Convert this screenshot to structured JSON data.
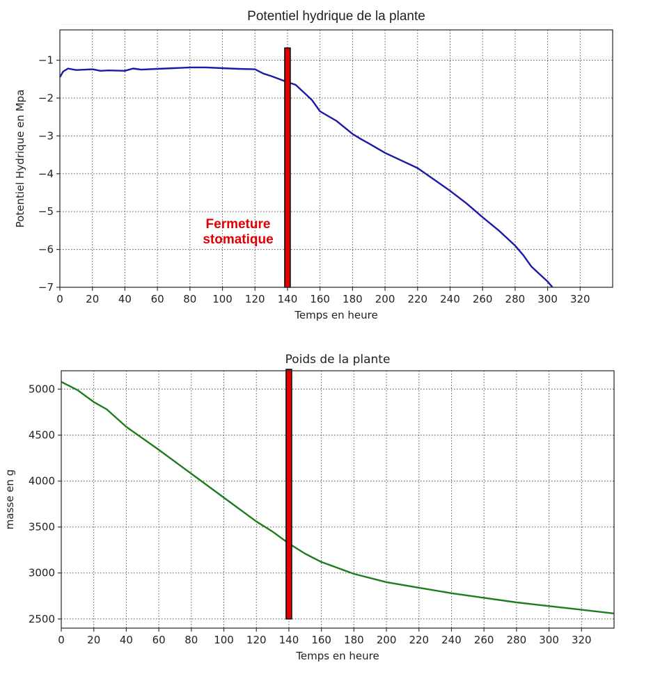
{
  "chart_data": [
    {
      "type": "line",
      "title": "Potentiel hydrique de la plante",
      "xlabel": "Temps en heure",
      "ylabel": "Potentiel Hydrique en Mpa",
      "xlim": [
        0,
        340
      ],
      "ylim": [
        -7,
        -0.2
      ],
      "xticks": [
        0,
        20,
        40,
        60,
        80,
        100,
        120,
        140,
        160,
        180,
        200,
        220,
        240,
        260,
        280,
        300,
        320
      ],
      "yticks": [
        -1,
        -2,
        -3,
        -4,
        -5,
        -6,
        -7
      ],
      "ytick_labels": [
        "−1",
        "−2",
        "−3",
        "−4",
        "−5",
        "−6",
        "−7"
      ],
      "grid": true,
      "series": [
        {
          "name": "Potentiel hydrique",
          "color": "#1a1aa6",
          "x": [
            0,
            2,
            5,
            10,
            20,
            25,
            30,
            40,
            45,
            50,
            60,
            70,
            80,
            90,
            100,
            110,
            120,
            125,
            130,
            135,
            140,
            145,
            150,
            155,
            160,
            170,
            180,
            185,
            190,
            200,
            210,
            220,
            230,
            240,
            250,
            260,
            270,
            280,
            285,
            290,
            295,
            300,
            303
          ],
          "values": [
            -1.45,
            -1.3,
            -1.22,
            -1.26,
            -1.24,
            -1.28,
            -1.27,
            -1.28,
            -1.22,
            -1.25,
            -1.23,
            -1.21,
            -1.19,
            -1.19,
            -1.21,
            -1.23,
            -1.24,
            -1.35,
            -1.42,
            -1.5,
            -1.58,
            -1.65,
            -1.85,
            -2.05,
            -2.35,
            -2.6,
            -2.95,
            -3.08,
            -3.2,
            -3.45,
            -3.65,
            -3.85,
            -4.15,
            -4.45,
            -4.78,
            -5.15,
            -5.5,
            -5.9,
            -6.15,
            -6.45,
            -6.65,
            -6.85,
            -7.0
          ]
        }
      ],
      "annotations": [
        {
          "type": "vertical-bar",
          "x": 140,
          "y_from": -7,
          "y_to": -0.5,
          "color": "#e00000"
        },
        {
          "type": "text",
          "text": "Fermeture stomatique",
          "lines": [
            "Fermeture",
            "stomatique"
          ],
          "x": 100,
          "y": -5.4,
          "color": "#e00000"
        }
      ]
    },
    {
      "type": "line",
      "title": "Poids de la plante",
      "xlabel": "Temps en heure",
      "ylabel": "masse en g",
      "xlim": [
        0,
        340
      ],
      "ylim": [
        2400,
        5200
      ],
      "xticks": [
        0,
        20,
        40,
        60,
        80,
        100,
        120,
        140,
        160,
        180,
        200,
        220,
        240,
        260,
        280,
        300,
        320
      ],
      "yticks": [
        2500,
        3000,
        3500,
        4000,
        4500,
        5000
      ],
      "grid": true,
      "series": [
        {
          "name": "Poids",
          "color": "#1e7b1e",
          "x": [
            0,
            10,
            20,
            28,
            40,
            60,
            80,
            100,
            120,
            130,
            140,
            150,
            160,
            180,
            200,
            220,
            240,
            260,
            280,
            300,
            320,
            340
          ],
          "values": [
            5080,
            4990,
            4860,
            4780,
            4590,
            4340,
            4080,
            3820,
            3560,
            3450,
            3320,
            3210,
            3120,
            2990,
            2900,
            2840,
            2780,
            2730,
            2680,
            2640,
            2600,
            2560
          ]
        }
      ],
      "annotations": [
        {
          "type": "vertical-bar",
          "x": 140,
          "y_from": 2500,
          "y_to": 5200,
          "color": "#e00000"
        }
      ]
    }
  ]
}
